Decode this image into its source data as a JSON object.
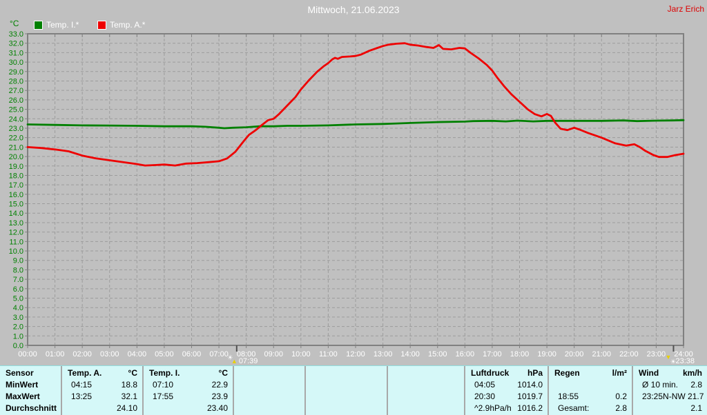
{
  "header": {
    "title": "Mittwoch, 21.06.2023",
    "user": "Jarz Erich"
  },
  "legend": {
    "unit": "°C",
    "items": [
      {
        "label": "Temp. I.*",
        "color": "#008000"
      },
      {
        "label": "Temp. A.*",
        "color": "#ee0000"
      }
    ]
  },
  "colors": {
    "background": "#c0c0c0",
    "plot_frame": "#808080",
    "grid": "#9c9c9c",
    "y_labels": "#008000",
    "x_labels": "#ffffff",
    "marker_tick": "#505050",
    "marker_arrow": "#e8d000",
    "marker_sun": "#ffffff",
    "table_bg": "#d5f8f8",
    "table_divider": "#a8a8a8"
  },
  "chart_data": {
    "type": "line",
    "title": "Mittwoch, 21.06.2023",
    "ylabel": "°C",
    "ylim": [
      0,
      33
    ],
    "ytick_step": 1.0,
    "xlim_hours": [
      0,
      24
    ],
    "xtick_labels": [
      "00:00",
      "01:00",
      "02:00",
      "03:00",
      "04:00",
      "05:00",
      "06:00",
      "07:00",
      "08:00",
      "09:00",
      "10:00",
      "11:00",
      "12:00",
      "13:00",
      "14:00",
      "15:00",
      "16:00",
      "17:00",
      "18:00",
      "19:00",
      "20:00",
      "21:00",
      "22:00",
      "23:00",
      "24:00"
    ],
    "grid": true,
    "legend_position": "top-left",
    "series": [
      {
        "name": "Temp. I.*",
        "color": "#008000",
        "points": [
          [
            0,
            23.4
          ],
          [
            1,
            23.35
          ],
          [
            2,
            23.3
          ],
          [
            3,
            23.28
          ],
          [
            4,
            23.25
          ],
          [
            5,
            23.2
          ],
          [
            6,
            23.2
          ],
          [
            6.5,
            23.15
          ],
          [
            7,
            23.05
          ],
          [
            7.2,
            23.0
          ],
          [
            7.5,
            23.05
          ],
          [
            8,
            23.1
          ],
          [
            8.5,
            23.2
          ],
          [
            9,
            23.2
          ],
          [
            9.5,
            23.25
          ],
          [
            10,
            23.25
          ],
          [
            11,
            23.3
          ],
          [
            12,
            23.4
          ],
          [
            13,
            23.45
          ],
          [
            13.5,
            23.5
          ],
          [
            14,
            23.55
          ],
          [
            15,
            23.65
          ],
          [
            16,
            23.7
          ],
          [
            16.3,
            23.75
          ],
          [
            17,
            23.78
          ],
          [
            17.5,
            23.72
          ],
          [
            17.92,
            23.8
          ],
          [
            18.5,
            23.72
          ],
          [
            19,
            23.78
          ],
          [
            20,
            23.78
          ],
          [
            21,
            23.78
          ],
          [
            21.8,
            23.82
          ],
          [
            22.3,
            23.75
          ],
          [
            23,
            23.8
          ],
          [
            23.6,
            23.82
          ],
          [
            24,
            23.85
          ]
        ]
      },
      {
        "name": "Temp. A.*",
        "color": "#ee0000",
        "points": [
          [
            0,
            21.0
          ],
          [
            0.5,
            20.9
          ],
          [
            1,
            20.75
          ],
          [
            1.5,
            20.55
          ],
          [
            2,
            20.1
          ],
          [
            2.5,
            19.8
          ],
          [
            3,
            19.6
          ],
          [
            3.5,
            19.4
          ],
          [
            4,
            19.2
          ],
          [
            4.3,
            19.05
          ],
          [
            4.7,
            19.1
          ],
          [
            5,
            19.15
          ],
          [
            5.4,
            19.05
          ],
          [
            5.8,
            19.25
          ],
          [
            6.2,
            19.3
          ],
          [
            6.6,
            19.4
          ],
          [
            7,
            19.5
          ],
          [
            7.3,
            19.8
          ],
          [
            7.6,
            20.5
          ],
          [
            7.9,
            21.6
          ],
          [
            8.1,
            22.3
          ],
          [
            8.35,
            22.8
          ],
          [
            8.6,
            23.4
          ],
          [
            8.8,
            23.85
          ],
          [
            9,
            24.0
          ],
          [
            9.2,
            24.5
          ],
          [
            9.5,
            25.4
          ],
          [
            9.8,
            26.3
          ],
          [
            10,
            27.1
          ],
          [
            10.3,
            28.1
          ],
          [
            10.6,
            29.0
          ],
          [
            10.85,
            29.6
          ],
          [
            11,
            29.9
          ],
          [
            11.15,
            30.3
          ],
          [
            11.25,
            30.45
          ],
          [
            11.35,
            30.35
          ],
          [
            11.5,
            30.55
          ],
          [
            11.8,
            30.6
          ],
          [
            12,
            30.65
          ],
          [
            12.2,
            30.8
          ],
          [
            12.5,
            31.2
          ],
          [
            12.8,
            31.5
          ],
          [
            13,
            31.7
          ],
          [
            13.2,
            31.85
          ],
          [
            13.5,
            31.95
          ],
          [
            13.8,
            32.0
          ],
          [
            14,
            31.85
          ],
          [
            14.3,
            31.75
          ],
          [
            14.6,
            31.6
          ],
          [
            14.85,
            31.5
          ],
          [
            15.05,
            31.8
          ],
          [
            15.2,
            31.4
          ],
          [
            15.5,
            31.35
          ],
          [
            15.8,
            31.5
          ],
          [
            16,
            31.45
          ],
          [
            16.2,
            31.0
          ],
          [
            16.5,
            30.4
          ],
          [
            16.8,
            29.7
          ],
          [
            17,
            29.1
          ],
          [
            17.2,
            28.3
          ],
          [
            17.45,
            27.4
          ],
          [
            17.7,
            26.6
          ],
          [
            18,
            25.8
          ],
          [
            18.3,
            25.0
          ],
          [
            18.55,
            24.5
          ],
          [
            18.8,
            24.25
          ],
          [
            19,
            24.5
          ],
          [
            19.15,
            24.3
          ],
          [
            19.3,
            23.6
          ],
          [
            19.5,
            22.95
          ],
          [
            19.75,
            22.8
          ],
          [
            20,
            23.05
          ],
          [
            20.2,
            22.85
          ],
          [
            20.5,
            22.5
          ],
          [
            21,
            22.0
          ],
          [
            21.5,
            21.4
          ],
          [
            21.9,
            21.15
          ],
          [
            22.2,
            21.3
          ],
          [
            22.4,
            21.0
          ],
          [
            22.6,
            20.6
          ],
          [
            22.9,
            20.15
          ],
          [
            23.1,
            19.95
          ],
          [
            23.4,
            19.95
          ],
          [
            23.7,
            20.15
          ],
          [
            24,
            20.3
          ]
        ]
      }
    ],
    "markers": [
      {
        "type": "sunrise",
        "time_hours": 7.65,
        "label": "07:39"
      },
      {
        "type": "sunset",
        "time_hours": 23.633,
        "label": "23:38"
      }
    ]
  },
  "stats_table": {
    "row_labels": {
      "header": "Sensor",
      "rows": [
        "MinWert",
        "MaxWert",
        "Durchschnitt"
      ]
    },
    "columns": [
      {
        "name": "Temp. A.",
        "unit": "°C",
        "rows": [
          {
            "l": "04:15",
            "r": "18.8"
          },
          {
            "l": "13:25",
            "r": "32.1"
          },
          {
            "l": "",
            "r": "24.10"
          }
        ]
      },
      {
        "name": "Temp. I.",
        "unit": "°C",
        "rows": [
          {
            "l": "07:10",
            "r": "22.9"
          },
          {
            "l": "17:55",
            "r": "23.9"
          },
          {
            "l": "",
            "r": "23.40"
          }
        ]
      },
      {
        "name": "Luftdruck",
        "unit": "hPa",
        "rows": [
          {
            "l": "04:05",
            "r": "1014.0"
          },
          {
            "l": "20:30",
            "r": "1019.7"
          },
          {
            "l": "^2.9hPa/h",
            "r": "1016.2"
          }
        ]
      },
      {
        "name": "Regen",
        "unit": "l/m²",
        "rows": [
          {
            "l": "",
            "r": ""
          },
          {
            "l": "18:55",
            "r": "0.2"
          },
          {
            "l": "Gesamt:",
            "r": "2.8"
          }
        ]
      },
      {
        "name": "Wind",
        "unit": "km/h",
        "rows": [
          {
            "l": "Ø 10 min.",
            "r": "2.8"
          },
          {
            "l": "23:25",
            "r": "N-NW 21.7"
          },
          {
            "l": "",
            "r": "2.1"
          }
        ]
      }
    ]
  }
}
